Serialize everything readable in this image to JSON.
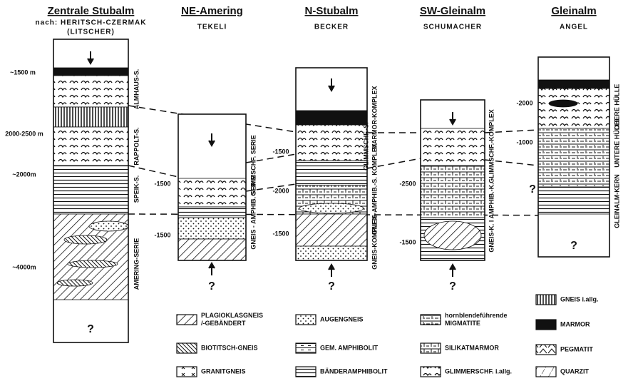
{
  "columns": [
    {
      "title": "Zentrale Stubalm",
      "subtitle": "nach: HERITSCH-CZERMAK",
      "note": "(LITSCHER)",
      "labels": [
        "ALMHAUS-S.",
        "RAPPOLT-S.",
        "SPEIK-S.",
        "AMERING-SERIE"
      ],
      "thicknesses": [
        "~1500 m",
        "2000-2500 m",
        "~2000m",
        "~4000m"
      ],
      "questions": [
        "?"
      ]
    },
    {
      "title": "NE-Amering",
      "subtitle": "TEKELI",
      "labels": [
        "GLIMMSCHF. SERIE",
        "GNEIS - AMPHIB. SERIE"
      ],
      "thicknesses": [
        "-1500",
        "-1500"
      ],
      "questions": [
        "?"
      ]
    },
    {
      "title": "N-Stubalm",
      "subtitle": "BECKER",
      "labels": [
        "MARMOR-KOMPLEX",
        "GLIMMSCHF.-S.",
        "GNEIS-AMPHIB.-S. KOMPLEX",
        "GNEIS-KOMPLEX"
      ],
      "thicknesses": [
        "-1500",
        "-2000",
        "-1500"
      ],
      "questions": [
        "?"
      ]
    },
    {
      "title": "SW-Gleinalm",
      "subtitle": "SCHUMACHER",
      "labels": [
        "GLIMMSCHF.-KOMPLEX",
        "GNEIS-K. I AMPHIB.-K."
      ],
      "thicknesses": [
        "-2500",
        "-1500"
      ],
      "questions": [
        "?"
      ]
    },
    {
      "title": "Gleinalm",
      "subtitle": "ANGEL",
      "labels": [
        "OBERE HÜLLE",
        "UNTERE HÜLLE",
        "GLEINALM-KERN"
      ],
      "thicknesses": [
        "-2000",
        "-1000"
      ],
      "questions": [
        "?",
        "?"
      ]
    }
  ],
  "legend": [
    {
      "lines": [
        "PLAGIOKLASGNEIS",
        "/-GEBÄNDERT"
      ]
    },
    {
      "lines": [
        "AUGENGNEIS"
      ]
    },
    {
      "lines": [
        "hornblendeführende",
        "MIGMATITE"
      ]
    },
    {
      "lines": [
        "GNEIS i.allg."
      ]
    },
    {
      "lines": [
        "BIOTITSCH-GNEIS"
      ]
    },
    {
      "lines": [
        "GEM. AMPHIBOLIT"
      ]
    },
    {
      "lines": [
        "SILIKATMARMOR"
      ]
    },
    {
      "lines": [
        "MARMOR"
      ]
    },
    {
      "lines": [
        "GRANITGNEIS"
      ]
    },
    {
      "lines": [
        "BÄNDERAMPHIBOLIT"
      ]
    },
    {
      "lines": [
        "GLIMMERSCHF. i.allg."
      ]
    },
    {
      "lines": [
        "PEGMATIT"
      ]
    },
    {
      "lines": [
        "QUARZIT"
      ]
    }
  ]
}
